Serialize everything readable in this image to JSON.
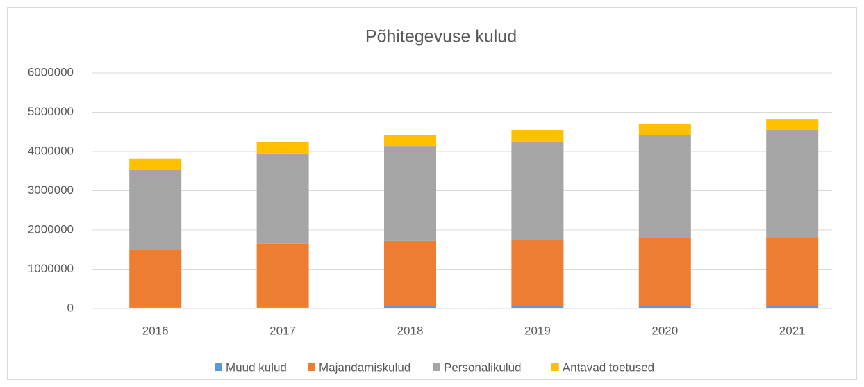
{
  "chart_data": {
    "type": "stacked_bar",
    "title": "Põhitegevuse kulud",
    "categories": [
      "2016",
      "2017",
      "2018",
      "2019",
      "2020",
      "2021"
    ],
    "series": [
      {
        "name": "Muud kulud",
        "color": "#5b9bd5",
        "values": [
          20000,
          20000,
          60000,
          60000,
          60000,
          60000
        ]
      },
      {
        "name": "Majandamiskulud",
        "color": "#ed7d31",
        "values": [
          1480000,
          1630000,
          1660000,
          1690000,
          1730000,
          1760000
        ]
      },
      {
        "name": "Personalikulud",
        "color": "#a5a5a5",
        "values": [
          2040000,
          2300000,
          2420000,
          2500000,
          2620000,
          2730000
        ]
      },
      {
        "name": "Antavad toetused",
        "color": "#ffc000",
        "values": [
          270000,
          280000,
          270000,
          300000,
          280000,
          280000
        ]
      }
    ],
    "ylim": [
      0,
      6000000
    ],
    "yticks": [
      0,
      1000000,
      2000000,
      3000000,
      4000000,
      5000000,
      6000000
    ],
    "grid": true,
    "legend": "bottom"
  }
}
